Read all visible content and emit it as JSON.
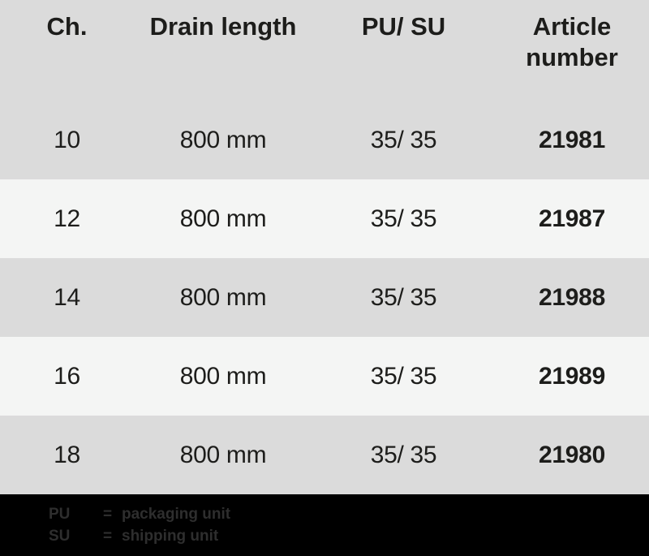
{
  "colors": {
    "header_bg": "#dbdbdb",
    "row_light_bg": "#f4f5f4",
    "row_alt_bg": "#dbdbdb",
    "footer_bg": "#000000",
    "table_text": "#1d1d1b",
    "footer_text": "#2e2e2e"
  },
  "table": {
    "headers": [
      "Ch.",
      "Drain length",
      "PU/ SU",
      "Article number"
    ],
    "rows": [
      {
        "ch": "10",
        "drain_length": "800 mm",
        "pu_su": "35/ 35",
        "article_number": "21981"
      },
      {
        "ch": "12",
        "drain_length": "800 mm",
        "pu_su": "35/ 35",
        "article_number": "21987"
      },
      {
        "ch": "14",
        "drain_length": "800 mm",
        "pu_su": "35/ 35",
        "article_number": "21988"
      },
      {
        "ch": "16",
        "drain_length": "800 mm",
        "pu_su": "35/ 35",
        "article_number": "21989"
      },
      {
        "ch": "18",
        "drain_length": "800 mm",
        "pu_su": "35/ 35",
        "article_number": "21980"
      }
    ]
  },
  "legend": [
    {
      "abbr": "PU",
      "eq": "=",
      "definition": "packaging unit"
    },
    {
      "abbr": "SU",
      "eq": "=",
      "definition": "shipping unit"
    }
  ]
}
